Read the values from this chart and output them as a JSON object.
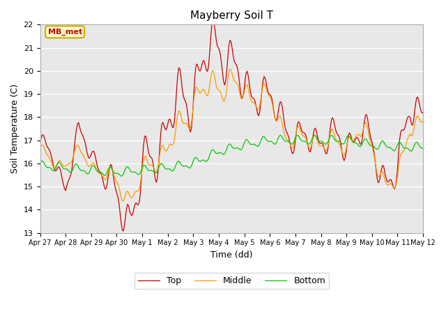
{
  "title": "Mayberry Soil T",
  "xlabel": "Time (dd)",
  "ylabel": "Soil Temperature (C)",
  "ylim": [
    13.0,
    22.0
  ],
  "yticks": [
    13.0,
    14.0,
    15.0,
    16.0,
    17.0,
    18.0,
    19.0,
    20.0,
    21.0,
    22.0
  ],
  "xtick_labels": [
    "Apr 27",
    "Apr 28",
    "Apr 29",
    "Apr 30",
    "May 1",
    "May 2",
    "May 3",
    "May 4",
    "May 5",
    "May 6",
    "May 7",
    "May 8",
    "May 9",
    "May 10",
    "May 11",
    "May 12"
  ],
  "color_top": "#cc0000",
  "color_middle": "#ff9900",
  "color_bottom": "#00cc00",
  "label_top": "Top",
  "label_middle": "Middle",
  "label_bottom": "Bottom",
  "bg_color": "#e8e8e8",
  "annotation_text": "MB_met",
  "annotation_bg": "#ffffcc",
  "annotation_border": "#ccaa00",
  "figwidth": 6.4,
  "figheight": 4.8,
  "dpi": 100
}
